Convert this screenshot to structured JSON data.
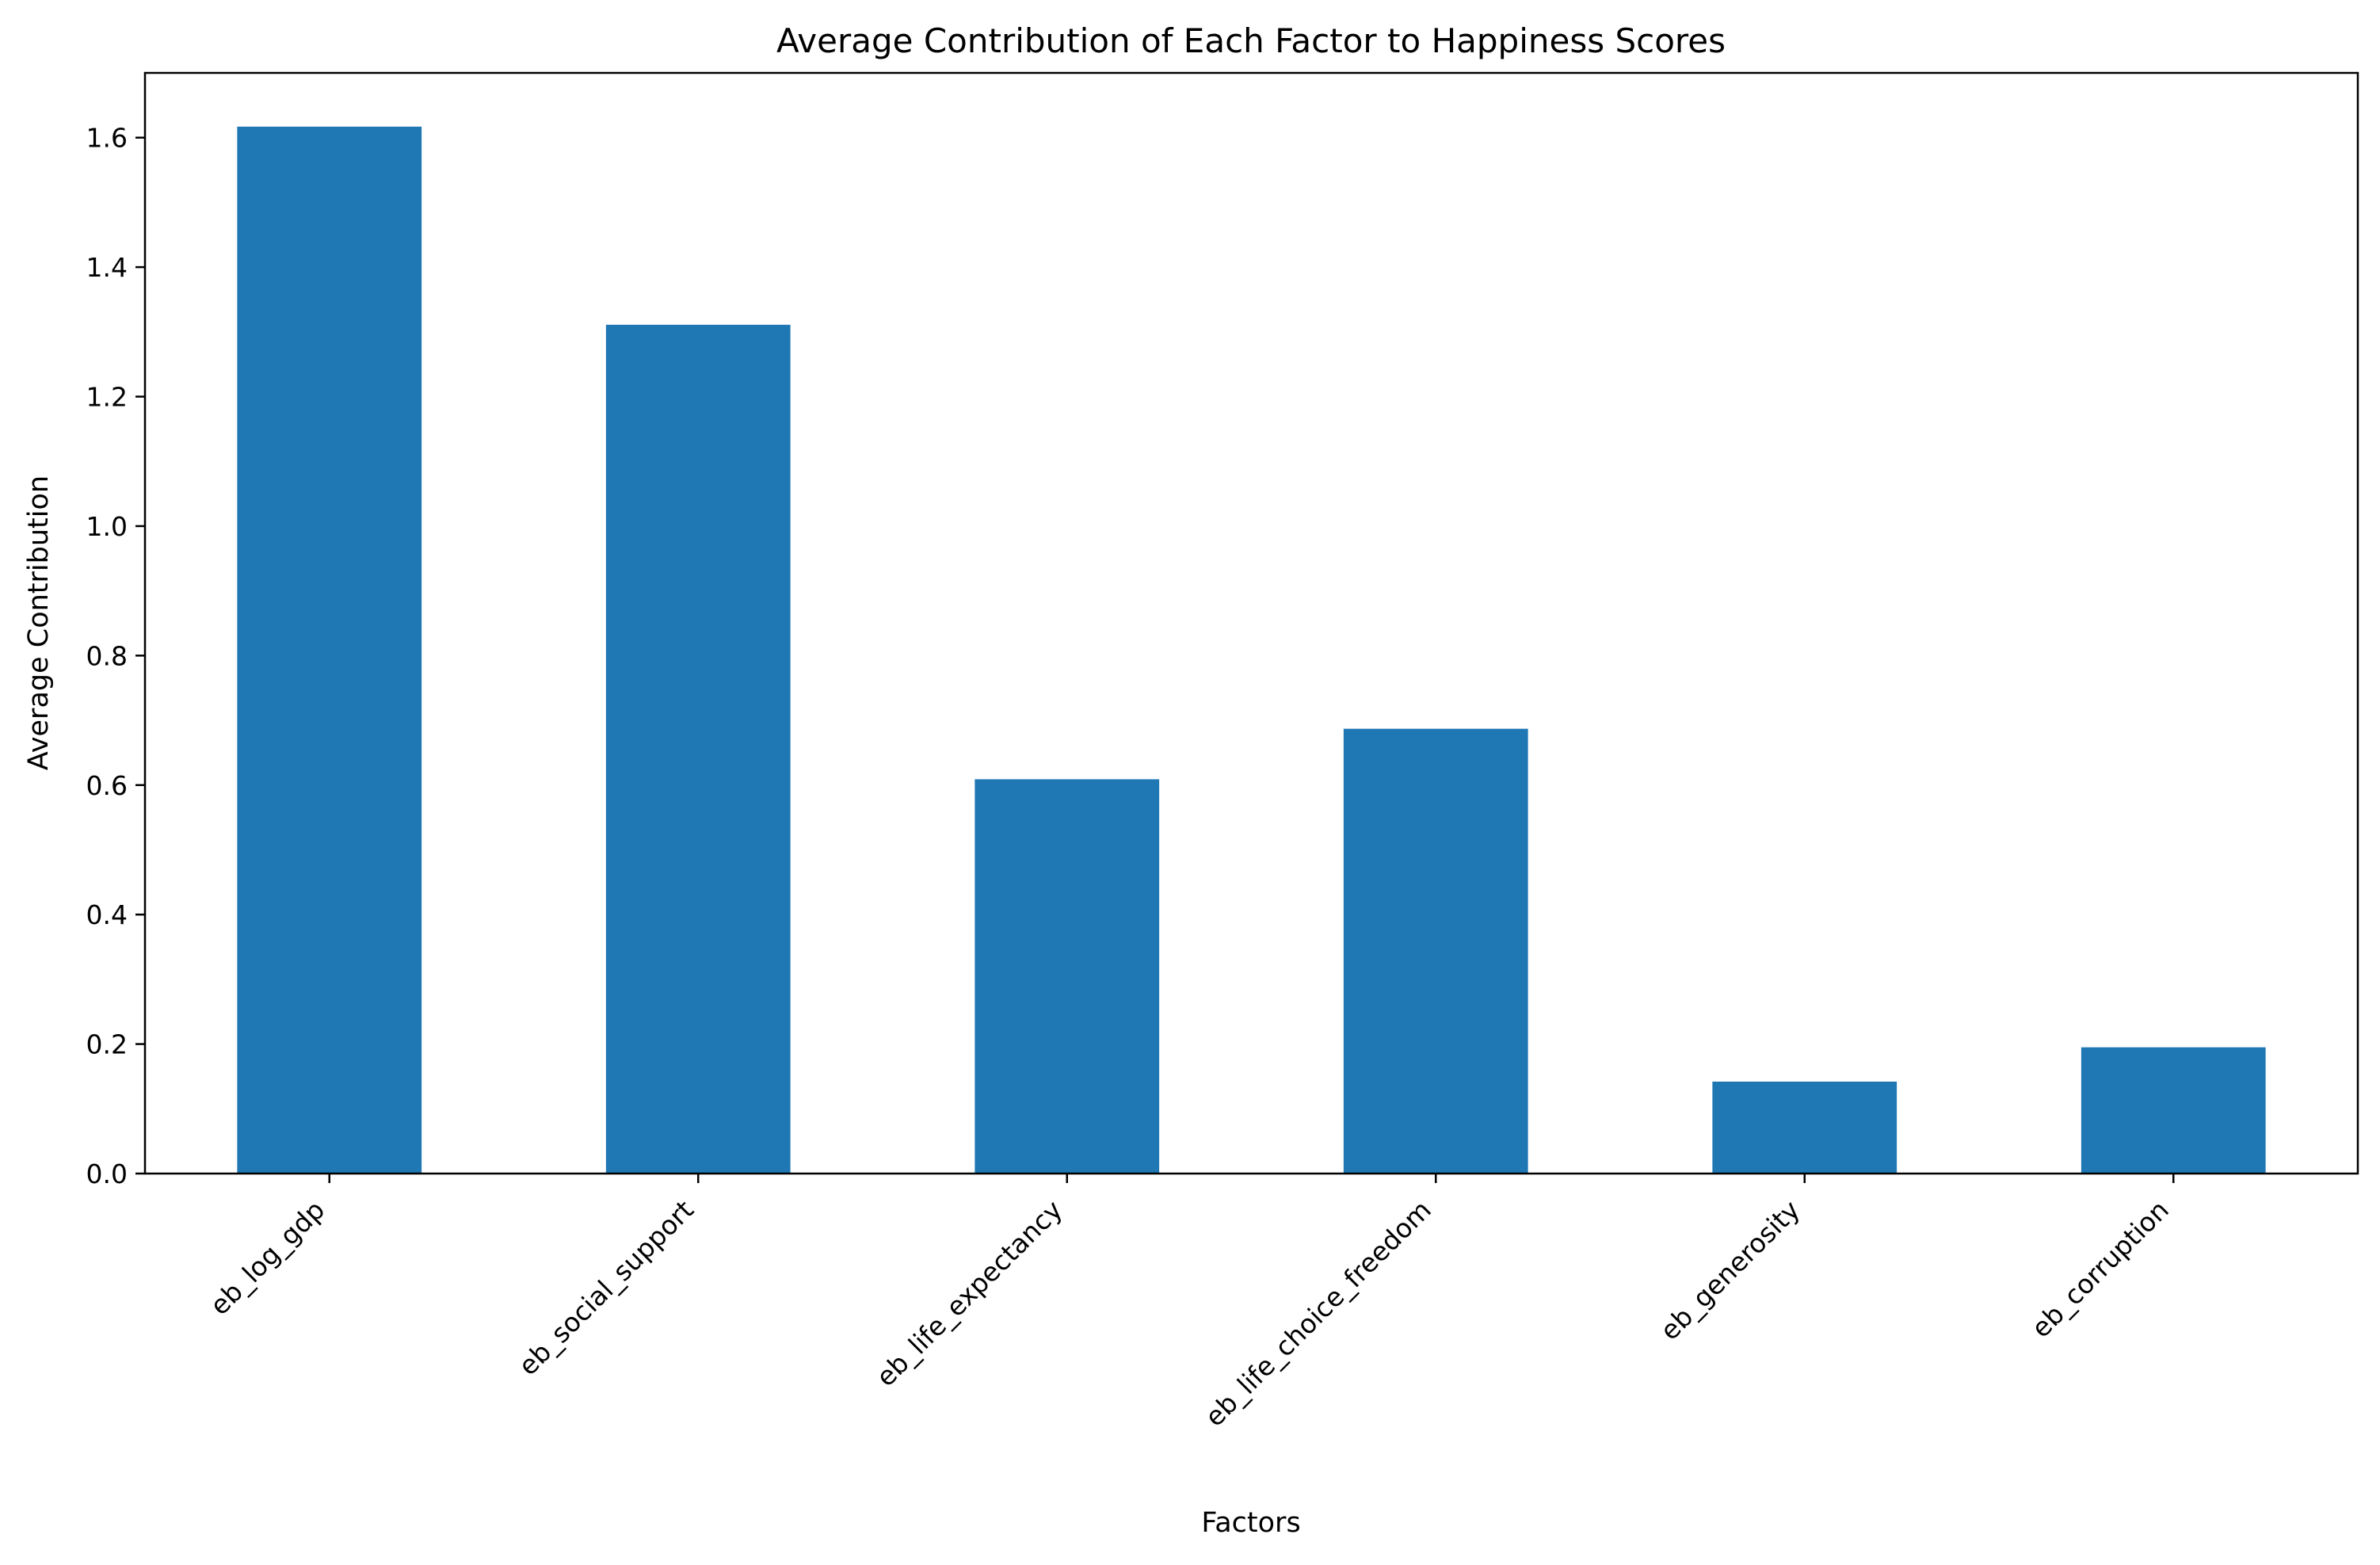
{
  "chart_data": {
    "type": "bar",
    "title": "Average Contribution of Each Factor to Happiness Scores",
    "xlabel": "Factors",
    "ylabel": "Average Contribution",
    "categories": [
      "eb_log_gdp",
      "eb_social_support",
      "eb_life_expectancy",
      "eb_life_choice_freedom",
      "eb_generosity",
      "eb_corruption"
    ],
    "values": [
      1.617,
      1.311,
      0.609,
      0.687,
      0.142,
      0.195
    ],
    "ylim": [
      0,
      1.7
    ],
    "yticks": [
      0.0,
      0.2,
      0.4,
      0.6,
      0.8,
      1.0,
      1.2,
      1.4,
      1.6
    ],
    "ytick_labels": [
      "0.0",
      "0.2",
      "0.4",
      "0.6",
      "0.8",
      "1.0",
      "1.2",
      "1.4",
      "1.6"
    ],
    "bar_color": "#1f77b4",
    "grid": false,
    "legend": "none"
  }
}
